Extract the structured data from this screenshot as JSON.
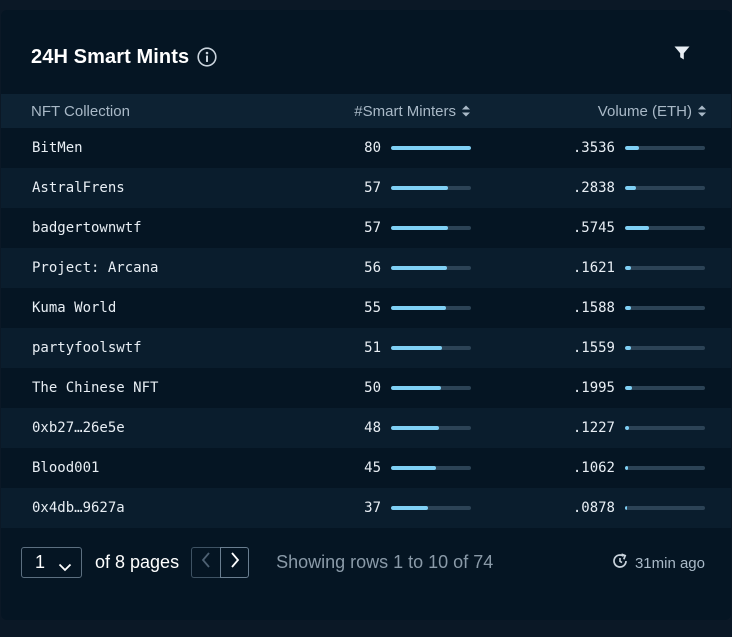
{
  "widget": {
    "title": "24H Smart Mints",
    "info_icon": "info-circle-icon",
    "filter_icon": "filter-funnel-icon"
  },
  "table": {
    "columns": [
      "NFT Collection",
      "#Smart Minters",
      "Volume (ETH)"
    ],
    "rows": [
      {
        "collection": "BitMen",
        "minters": "80",
        "minters_fraction": 1.0,
        "volume": ".3536",
        "volume_fraction": 0.17
      },
      {
        "collection": "AstralFrens",
        "minters": "57",
        "minters_fraction": 0.71,
        "volume": ".2838",
        "volume_fraction": 0.14
      },
      {
        "collection": "badgertownwtf",
        "minters": "57",
        "minters_fraction": 0.71,
        "volume": ".5745",
        "volume_fraction": 0.3
      },
      {
        "collection": "Project: Arcana",
        "minters": "56",
        "minters_fraction": 0.7,
        "volume": ".1621",
        "volume_fraction": 0.07
      },
      {
        "collection": "Kuma World",
        "minters": "55",
        "minters_fraction": 0.69,
        "volume": ".1588",
        "volume_fraction": 0.07
      },
      {
        "collection": "partyfoolswtf",
        "minters": "51",
        "minters_fraction": 0.64,
        "volume": ".1559",
        "volume_fraction": 0.07
      },
      {
        "collection": "The Chinese NFT",
        "minters": "50",
        "minters_fraction": 0.63,
        "volume": ".1995",
        "volume_fraction": 0.09
      },
      {
        "collection": "0xb27…26e5e",
        "minters": "48",
        "minters_fraction": 0.6,
        "volume": ".1227",
        "volume_fraction": 0.05
      },
      {
        "collection": "Blood001",
        "minters": "45",
        "minters_fraction": 0.56,
        "volume": ".1062",
        "volume_fraction": 0.04
      },
      {
        "collection": "0x4db…9627a",
        "minters": "37",
        "minters_fraction": 0.46,
        "volume": ".0878",
        "volume_fraction": 0.03
      }
    ]
  },
  "pagination": {
    "current_page": "1",
    "of_pages": "of 8 pages",
    "showing": "Showing rows 1 to 10 of 74",
    "updated": "31min ago"
  },
  "colors": {
    "background": "#051523",
    "header_row": "#0d2233",
    "bar_fill": "#7fd0f5",
    "bar_track": "#2c4356"
  }
}
